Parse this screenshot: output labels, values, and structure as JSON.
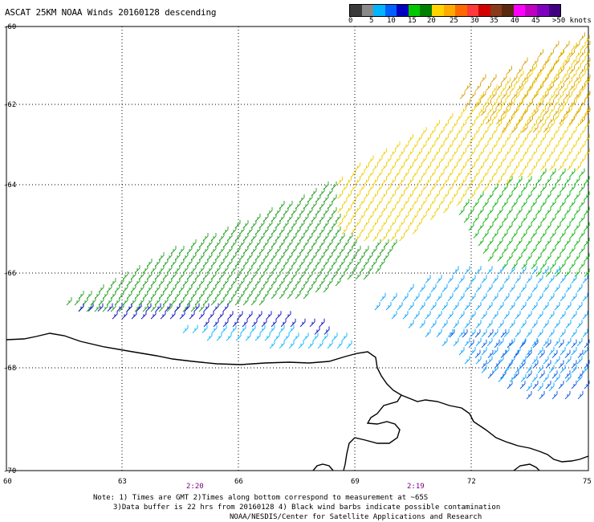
{
  "title": "ASCAT 25KM NOAA Winds 20160128 descending",
  "colorbar": {
    "labels": [
      "0",
      "5",
      "10",
      "15",
      "20",
      "25",
      "30",
      "35",
      "40",
      "45",
      ">50 knots"
    ],
    "colors": [
      "#3a3a3a",
      "#8a8a8a",
      "#00b4ff",
      "#0060ff",
      "#0000c0",
      "#00c800",
      "#008000",
      "#ffd400",
      "#ffaa00",
      "#ff6a00",
      "#ff3a3a",
      "#d20000",
      "#8a3a1a",
      "#5a2a10",
      "#ff00ff",
      "#c000c0",
      "#8000c0",
      "#400080"
    ]
  },
  "axes": {
    "lat_labels": [
      "-60",
      "-62",
      "-64",
      "-66",
      "-68",
      "-70"
    ],
    "lon_labels": [
      "60",
      "63",
      "66",
      "69",
      "72",
      "75"
    ]
  },
  "times": [
    {
      "label": "2:20",
      "color": "#800080"
    },
    {
      "label": "2:19",
      "color": "#800080"
    }
  ],
  "footer": {
    "line1": "Note: 1) Times are GMT 2)Times along bottom correspond to measurement at ~65S",
    "line2": "3)Data buffer is 22 hrs from 20160128 4) Black wind barbs indicate possible contamination",
    "line3": "NOAA/NESDIS/Center for Satellite Applications and Research"
  }
}
